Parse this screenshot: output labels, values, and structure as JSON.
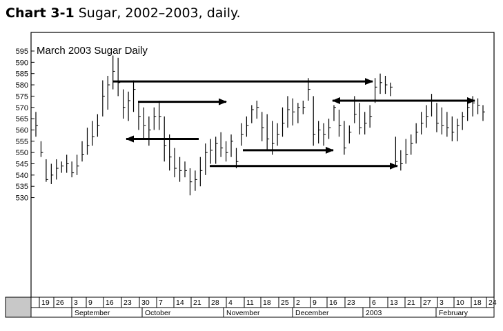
{
  "caption": {
    "label": "Chart 3-1",
    "text": "Sugar, 2002–2003, daily."
  },
  "chart_data": {
    "type": "ohlc",
    "title": "March 2003 Sugar Daily",
    "ylim": [
      525,
      598
    ],
    "yticks": [
      530,
      535,
      540,
      545,
      550,
      555,
      560,
      565,
      570,
      575,
      580,
      585,
      590,
      595
    ],
    "x_day_labels": [
      "19",
      "26",
      "3",
      "9",
      "16",
      "23",
      "30",
      "7",
      "14",
      "21",
      "28",
      "4",
      "11",
      "18",
      "25",
      "2",
      "9",
      "16",
      "23",
      "6",
      "13",
      "21",
      "27",
      "3",
      "10",
      "18",
      "24"
    ],
    "x_month_labels": [
      "September",
      "October",
      "November",
      "December",
      "2003",
      "February"
    ],
    "bars": [
      [
        568,
        557,
        562
      ],
      [
        555,
        548,
        550
      ],
      [
        547,
        537,
        538
      ],
      [
        545,
        536,
        540
      ],
      [
        547,
        538,
        543
      ],
      [
        546,
        541,
        544
      ],
      [
        549,
        541,
        545
      ],
      [
        546,
        539,
        541
      ],
      [
        549,
        540,
        544
      ],
      [
        555,
        546,
        549
      ],
      [
        561,
        549,
        553
      ],
      [
        564,
        553,
        557
      ],
      [
        567,
        557,
        562
      ],
      [
        582,
        566,
        575
      ],
      [
        584,
        569,
        580
      ],
      [
        593,
        578,
        586
      ],
      [
        592,
        575,
        581
      ],
      [
        578,
        565,
        570
      ],
      [
        577,
        564,
        573
      ],
      [
        582,
        568,
        578
      ],
      [
        572,
        560,
        566
      ],
      [
        570,
        556,
        562
      ],
      [
        566,
        553,
        560
      ],
      [
        570,
        560,
        566
      ],
      [
        573,
        560,
        566
      ],
      [
        566,
        546,
        553
      ],
      [
        558,
        542,
        548
      ],
      [
        552,
        539,
        543
      ],
      [
        548,
        537,
        542
      ],
      [
        546,
        539,
        542
      ],
      [
        543,
        531,
        537
      ],
      [
        542,
        533,
        538
      ],
      [
        548,
        535,
        542
      ],
      [
        554,
        540,
        550
      ],
      [
        556,
        545,
        551
      ],
      [
        557,
        545,
        554
      ],
      [
        559,
        548,
        552
      ],
      [
        555,
        546,
        550
      ],
      [
        558,
        548,
        555
      ],
      [
        552,
        543,
        546
      ],
      [
        563,
        553,
        558
      ],
      [
        566,
        557,
        562
      ],
      [
        571,
        563,
        569
      ],
      [
        573,
        565,
        570
      ],
      [
        568,
        555,
        561
      ],
      [
        567,
        551,
        556
      ],
      [
        564,
        549,
        554
      ],
      [
        563,
        553,
        558
      ],
      [
        570,
        557,
        563
      ],
      [
        575,
        561,
        569
      ],
      [
        574,
        562,
        568
      ],
      [
        572,
        563,
        570
      ],
      [
        573,
        567,
        570
      ],
      [
        583,
        573,
        578
      ],
      [
        575,
        553,
        558
      ],
      [
        564,
        554,
        560
      ],
      [
        563,
        553,
        558
      ],
      [
        565,
        556,
        561
      ],
      [
        571,
        564,
        570
      ],
      [
        569,
        557,
        562
      ],
      [
        564,
        549,
        552
      ],
      [
        562,
        554,
        559
      ],
      [
        575,
        563,
        567
      ],
      [
        572,
        558,
        561
      ],
      [
        568,
        558,
        563
      ],
      [
        571,
        561,
        566
      ],
      [
        583,
        572,
        579
      ],
      [
        585,
        576,
        581
      ],
      [
        584,
        576,
        580
      ],
      [
        581,
        575,
        579
      ],
      [
        557,
        544,
        546
      ],
      [
        551,
        542,
        545
      ],
      [
        556,
        545,
        549
      ],
      [
        558,
        549,
        554
      ],
      [
        563,
        554,
        559
      ],
      [
        568,
        558,
        563
      ],
      [
        571,
        561,
        566
      ],
      [
        576,
        566,
        573
      ],
      [
        572,
        559,
        563
      ],
      [
        570,
        558,
        562
      ],
      [
        568,
        557,
        561
      ],
      [
        566,
        555,
        559
      ],
      [
        565,
        555,
        562
      ],
      [
        568,
        560,
        566
      ],
      [
        573,
        564,
        570
      ],
      [
        575,
        566,
        572
      ],
      [
        574,
        567,
        571
      ],
      [
        571,
        564,
        568
      ]
    ],
    "arrows": [
      {
        "from": [
          164,
          581.5
        ],
        "to": [
          540,
          581.5
        ]
      },
      {
        "from": [
          200,
          572.5
        ],
        "to": [
          328,
          572.5
        ]
      },
      {
        "from": [
          288,
          556.0
        ],
        "to": [
          183,
          556.0
        ]
      },
      {
        "from": [
          352,
          551.0
        ],
        "to": [
          483,
          551.0
        ]
      },
      {
        "from": [
          304,
          544.0
        ],
        "to": [
          576,
          544.0
        ]
      },
      {
        "from": [
          497,
          573.0
        ],
        "to": [
          688,
          573.0
        ]
      },
      {
        "from": [
          555,
          573.0
        ],
        "to": [
          482,
          573.0
        ]
      }
    ]
  }
}
